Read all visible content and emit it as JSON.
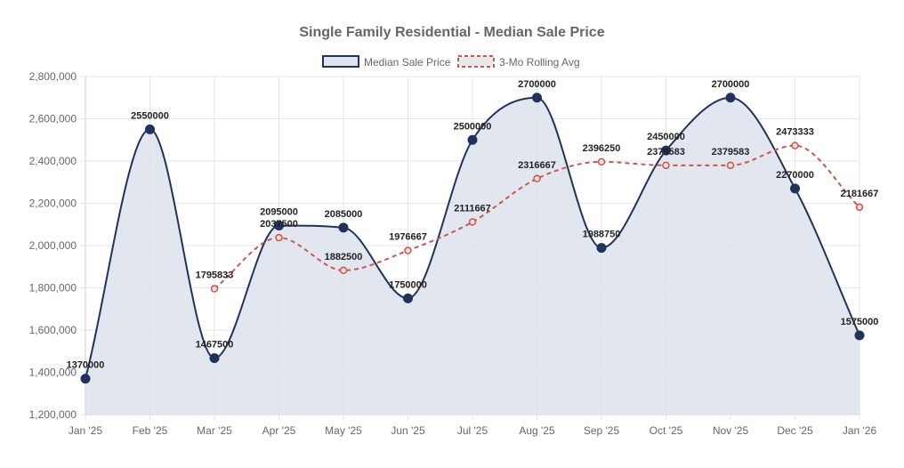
{
  "chart_data": {
    "type": "line",
    "title": "Single Family Residential - Median Sale Price",
    "categories": [
      "Jan '25",
      "Feb '25",
      "Mar '25",
      "Apr '25",
      "May '25",
      "Jun '25",
      "Jul '25",
      "Aug '25",
      "Sep '25",
      "Oct '25",
      "Nov '25",
      "Dec '25",
      "Jan '26"
    ],
    "series": [
      {
        "name": "Median Sale Price",
        "values": [
          1370000,
          2550000,
          1467500,
          2095000,
          2085000,
          1750000,
          2500000,
          2700000,
          1988750,
          2450000,
          2700000,
          2270000,
          1575000
        ],
        "labels": [
          "1370000",
          "2550000",
          "1467500",
          "2095000",
          "2085000",
          "1750000",
          "2500000",
          "2700000",
          "1988750",
          "2450000",
          "2700000",
          "2270000",
          "1575000"
        ],
        "color": "#1f335c",
        "fill": "#dfe3ec",
        "style": "solid"
      },
      {
        "name": "3-Mo Rolling Avg",
        "values": [
          null,
          null,
          1795833,
          2037500,
          1882500,
          1976667,
          2111667,
          2316667,
          2396250,
          2379583,
          2379583,
          2473333,
          2181667
        ],
        "labels": [
          "",
          "",
          "1795833",
          "2037500",
          "1882500",
          "1976667",
          "2111667",
          "2316667",
          "2396250",
          "2379583",
          "2379583",
          "2473333",
          "2181667"
        ],
        "color": "#c8574f",
        "fill": "#e8e8e8",
        "style": "dashed"
      }
    ],
    "yticks": [
      "2,800,000",
      "2,600,000",
      "2,400,000",
      "2,200,000",
      "2,000,000",
      "1,800,000",
      "1,600,000",
      "1,400,000",
      "1,200,000"
    ],
    "ylim": [
      1200000,
      2800000
    ],
    "grid": true,
    "legend": "top-center"
  }
}
